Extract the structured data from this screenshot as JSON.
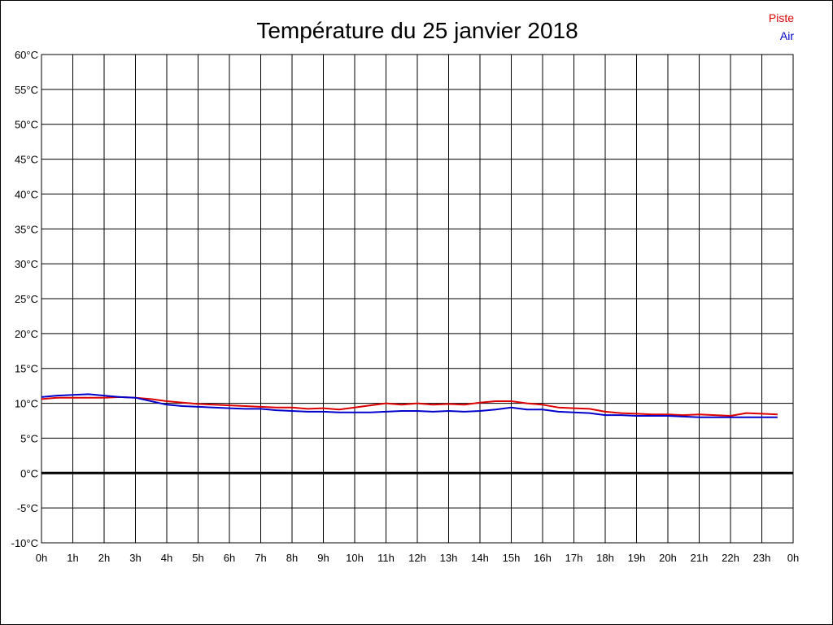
{
  "chart_data": {
    "type": "line",
    "title": "Température du 25 janvier 2018",
    "xlabel": "",
    "ylabel": "",
    "x_ticks": [
      "0h",
      "1h",
      "2h",
      "3h",
      "4h",
      "5h",
      "6h",
      "7h",
      "8h",
      "9h",
      "10h",
      "11h",
      "12h",
      "13h",
      "14h",
      "15h",
      "16h",
      "17h",
      "18h",
      "19h",
      "20h",
      "21h",
      "22h",
      "23h",
      "0h"
    ],
    "y_ticks": [
      "60°C",
      "55°C",
      "50°C",
      "45°C",
      "40°C",
      "35°C",
      "30°C",
      "25°C",
      "20°C",
      "15°C",
      "10°C",
      "5°C",
      "0°C",
      "-5°C",
      "-10°C"
    ],
    "xlim": [
      0,
      24
    ],
    "ylim": [
      -10,
      60
    ],
    "grid": true,
    "legend_position": "top-right",
    "series": [
      {
        "name": "Piste",
        "color": "#dd0000",
        "x": [
          0,
          0.5,
          1,
          1.5,
          2,
          2.5,
          3,
          3.5,
          4,
          4.5,
          5,
          5.5,
          6,
          6.5,
          7,
          7.5,
          8,
          8.5,
          9,
          9.5,
          10,
          10.5,
          11,
          11.5,
          12,
          12.5,
          13,
          13.5,
          14,
          14.5,
          15,
          15.5,
          16,
          16.5,
          17,
          17.5,
          18,
          18.5,
          19,
          19.5,
          20,
          20.5,
          21,
          21.5,
          22,
          22.5,
          23,
          23.5
        ],
        "values": [
          10.6,
          10.8,
          10.8,
          10.8,
          10.8,
          10.9,
          10.8,
          10.6,
          10.3,
          10.1,
          9.9,
          9.8,
          9.7,
          9.6,
          9.5,
          9.4,
          9.4,
          9.2,
          9.3,
          9.1,
          9.4,
          9.7,
          10.0,
          9.8,
          10.0,
          9.8,
          9.9,
          9.8,
          10.1,
          10.3,
          10.3,
          10.0,
          9.8,
          9.4,
          9.3,
          9.2,
          8.8,
          8.6,
          8.5,
          8.4,
          8.4,
          8.3,
          8.4,
          8.3,
          8.2,
          8.6,
          8.5,
          8.4
        ]
      },
      {
        "name": "Air",
        "color": "#0000cc",
        "x": [
          0,
          0.5,
          1,
          1.5,
          2,
          2.5,
          3,
          3.5,
          4,
          4.5,
          5,
          5.5,
          6,
          6.5,
          7,
          7.5,
          8,
          8.5,
          9,
          9.5,
          10,
          10.5,
          11,
          11.5,
          12,
          12.5,
          13,
          13.5,
          14,
          14.5,
          15,
          15.5,
          16,
          16.5,
          17,
          17.5,
          18,
          18.5,
          19,
          19.5,
          20,
          20.5,
          21,
          21.5,
          22,
          22.5,
          23,
          23.5
        ],
        "values": [
          10.9,
          11.1,
          11.2,
          11.3,
          11.1,
          10.9,
          10.8,
          10.3,
          9.8,
          9.6,
          9.5,
          9.4,
          9.3,
          9.2,
          9.2,
          9.0,
          8.9,
          8.8,
          8.8,
          8.7,
          8.7,
          8.7,
          8.8,
          8.9,
          8.9,
          8.8,
          8.9,
          8.8,
          8.9,
          9.1,
          9.4,
          9.1,
          9.1,
          8.8,
          8.7,
          8.6,
          8.3,
          8.3,
          8.2,
          8.2,
          8.2,
          8.1,
          8.0,
          8.0,
          8.0,
          8.0,
          8.0,
          8.0
        ]
      }
    ]
  }
}
